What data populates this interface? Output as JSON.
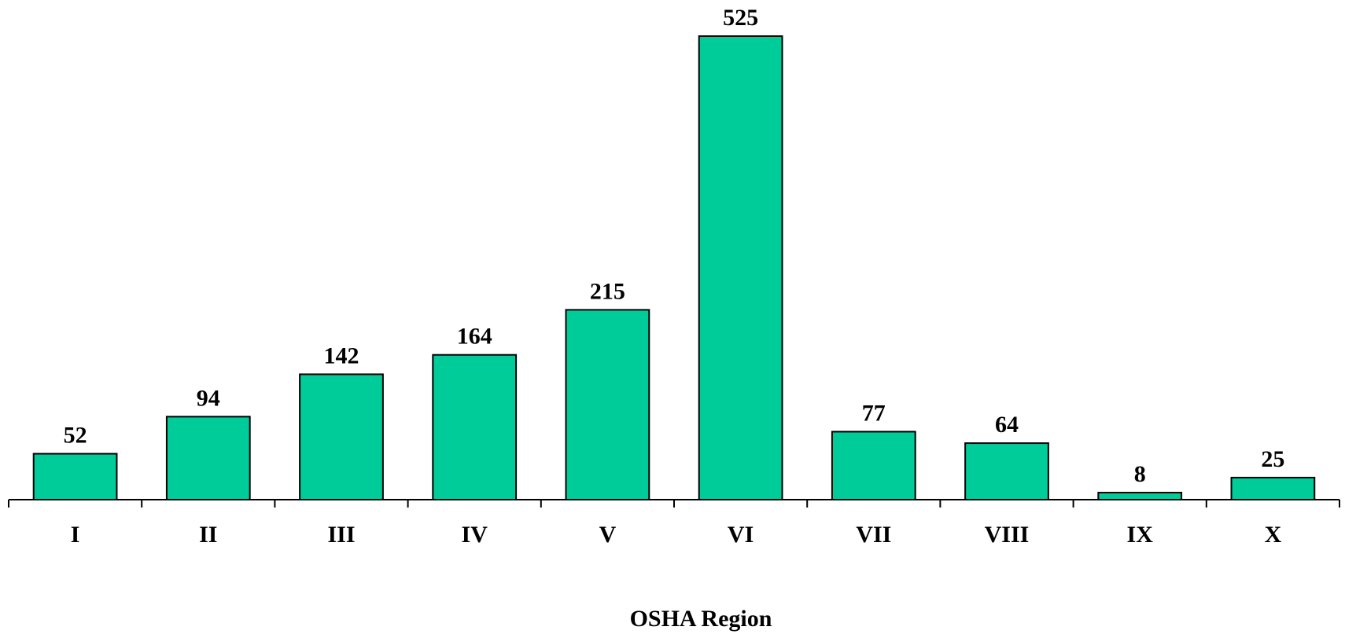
{
  "chart_data": {
    "type": "bar",
    "x_label": "OSHA Region",
    "categories": [
      "I",
      "II",
      "III",
      "IV",
      "V",
      "VI",
      "VII",
      "VIII",
      "IX",
      "X"
    ],
    "values": [
      52,
      94,
      142,
      164,
      215,
      525,
      77,
      64,
      8,
      25
    ],
    "color": "#00cc99"
  }
}
